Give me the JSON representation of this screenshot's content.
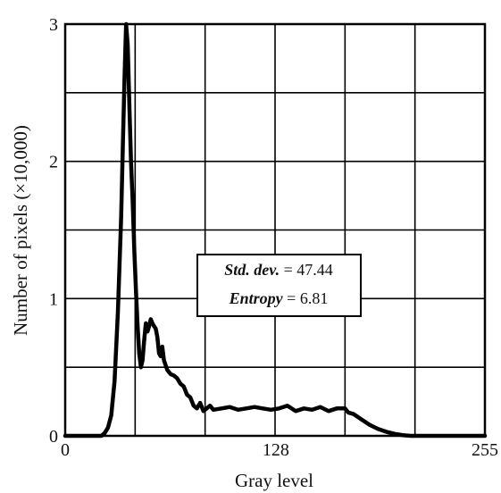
{
  "chart_data": {
    "type": "line",
    "xlabel": "Gray level",
    "ylabel": "Number of pixels (×10,000)",
    "xlim": [
      0,
      255
    ],
    "ylim": [
      0,
      3
    ],
    "x_ticks": [
      0,
      128,
      255
    ],
    "x_tick_labels": [
      "0",
      "128",
      "255"
    ],
    "y_ticks": [
      0,
      1,
      2,
      3
    ],
    "y_tick_labels": [
      "0",
      "1",
      "2",
      "3"
    ],
    "grid": true,
    "grid_x": [
      0,
      42.5,
      85,
      127.5,
      170,
      212.5,
      255
    ],
    "grid_y": [
      0,
      0.5,
      1,
      1.5,
      2,
      2.5,
      3
    ],
    "annotation": {
      "lines": [
        {
          "key": "Std. dev.",
          "eq": " = ",
          "value": "47.44"
        },
        {
          "key": "Entropy",
          "eq": " = ",
          "value": "6.81"
        }
      ]
    },
    "series": [
      {
        "x": [
          0,
          22,
          24,
          26,
          28,
          30,
          32,
          34,
          35,
          36,
          37,
          38,
          39,
          40,
          41,
          42,
          43,
          44,
          45,
          46,
          47,
          48,
          49,
          50,
          51,
          52,
          53,
          54,
          55,
          56,
          57,
          58,
          59,
          60,
          62,
          64,
          66,
          68,
          70,
          72,
          74,
          76,
          78,
          80,
          82,
          84,
          86,
          88,
          90,
          95,
          100,
          105,
          110,
          115,
          120,
          125,
          130,
          135,
          140,
          145,
          150,
          155,
          160,
          165,
          170,
          172,
          175,
          180,
          185,
          190,
          195,
          200,
          205,
          210,
          215,
          255
        ],
        "y": [
          0,
          0,
          0.02,
          0.06,
          0.15,
          0.4,
          0.9,
          1.6,
          2.1,
          2.6,
          3.0,
          2.85,
          2.4,
          2.0,
          1.7,
          1.35,
          1.05,
          0.8,
          0.6,
          0.5,
          0.55,
          0.7,
          0.82,
          0.76,
          0.8,
          0.85,
          0.82,
          0.8,
          0.78,
          0.72,
          0.6,
          0.58,
          0.65,
          0.55,
          0.48,
          0.45,
          0.44,
          0.42,
          0.38,
          0.36,
          0.3,
          0.28,
          0.22,
          0.2,
          0.24,
          0.18,
          0.2,
          0.22,
          0.19,
          0.2,
          0.21,
          0.19,
          0.2,
          0.21,
          0.2,
          0.19,
          0.2,
          0.22,
          0.18,
          0.2,
          0.19,
          0.21,
          0.18,
          0.2,
          0.2,
          0.17,
          0.16,
          0.12,
          0.08,
          0.05,
          0.03,
          0.015,
          0.005,
          0,
          0,
          0
        ]
      }
    ]
  }
}
